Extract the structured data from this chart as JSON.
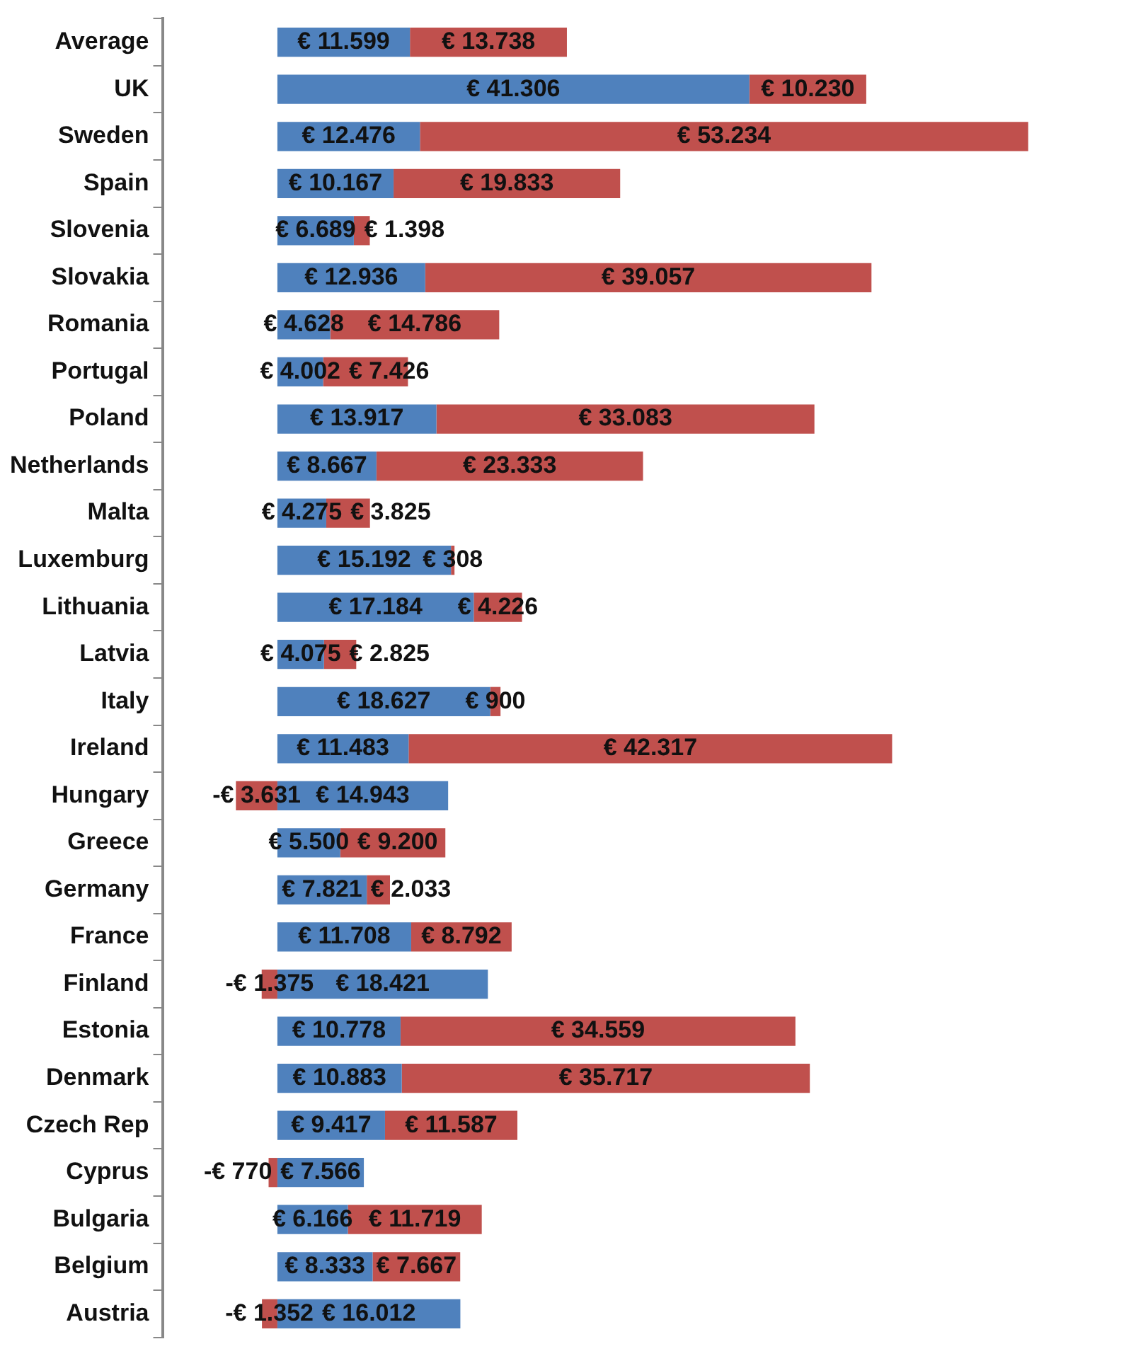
{
  "chart_data": {
    "type": "bar",
    "orientation": "horizontal",
    "stacked": true,
    "legend": false,
    "tick_labels": "y",
    "categories": [
      "Average",
      "UK",
      "Sweden",
      "Spain",
      "Slovenia",
      "Slovakia",
      "Romania",
      "Portugal",
      "Poland",
      "Netherlands",
      "Malta",
      "Luxemburg",
      "Lithuania",
      "Latvia",
      "Italy",
      "Ireland",
      "Hungary",
      "Greece",
      "Germany",
      "France",
      "Finland",
      "Estonia",
      "Denmark",
      "Czech Rep",
      "Cyprus",
      "Bulgaria",
      "Belgium",
      "Austria"
    ],
    "series": [
      {
        "color": "#4f81bd",
        "values": [
          11599,
          41306,
          12476,
          10167,
          6689,
          12936,
          4628,
          4002,
          13917,
          8667,
          4275,
          15192,
          17184,
          4075,
          18627,
          11483,
          14943,
          5500,
          7821,
          11708,
          18421,
          10778,
          10883,
          9417,
          7566,
          6166,
          8333,
          16012
        ],
        "value_labels": [
          "€ 11.599",
          "€ 41.306",
          "€ 12.476",
          "€ 10.167",
          "€ 6.689",
          "€ 12.936",
          "€ 4.628",
          "€ 4.002",
          "€ 13.917",
          "€ 8.667",
          "€ 4.275",
          "€ 15.192",
          "€ 17.184",
          "€ 4.075",
          "€ 18.627",
          "€ 11.483",
          "€ 14.943",
          "€ 5.500",
          "€ 7.821",
          "€ 11.708",
          "€ 18.421",
          "€ 10.778",
          "€ 10.883",
          "€ 9.417",
          "€ 7.566",
          "€ 6.166",
          "€ 8.333",
          "€ 16.012"
        ]
      },
      {
        "color": "#c0504d",
        "values": [
          13738,
          10230,
          53234,
          19833,
          1398,
          39057,
          14786,
          7426,
          33083,
          23333,
          3825,
          308,
          4226,
          2825,
          900,
          42317,
          -3631,
          9200,
          2033,
          8792,
          -1375,
          34559,
          35717,
          11587,
          -770,
          11719,
          7667,
          -1352
        ],
        "value_labels": [
          "€ 13.738",
          "€ 10.230",
          "€ 53.234",
          "€ 19.833",
          "€ 1.398",
          "€ 39.057",
          "€ 14.786",
          "€ 7.426",
          "€ 33.083",
          "€ 23.333",
          "€ 3.825",
          "€ 308",
          "€ 4.226",
          "€ 2.825",
          "€ 900",
          "€ 42.317",
          "-€ 3.631",
          "€ 9.200",
          "€ 2.033",
          "€ 8.792",
          "-€ 1.375",
          "€ 34.559",
          "€ 35.717",
          "€ 11.587",
          "-€ 770",
          "€ 11.719",
          "€ 7.667",
          "-€ 1.352"
        ]
      }
    ]
  }
}
